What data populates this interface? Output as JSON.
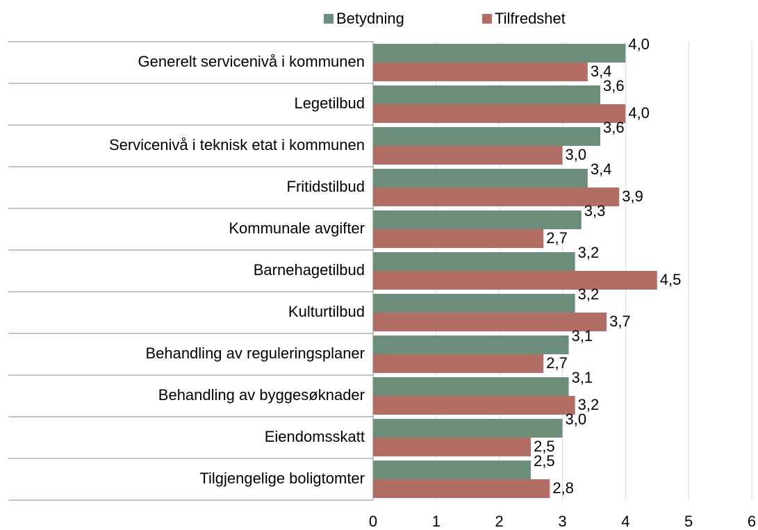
{
  "chart_data": {
    "type": "bar",
    "orientation": "horizontal",
    "categories": [
      "Generelt servicenivå i kommunen",
      "Legetilbud",
      "Servicenivå i teknisk etat i kommunen",
      "Fritidstilbud",
      "Kommunale avgifter",
      "Barnehagetilbud",
      "Kulturtilbud",
      "Behandling av reguleringsplaner",
      "Behandling av byggesøknader",
      "Eiendomsskatt",
      "Tilgjengelige boligtomter"
    ],
    "series": [
      {
        "name": "Betydning",
        "color": "#6e8e7c",
        "values": [
          4.0,
          3.6,
          3.6,
          3.4,
          3.3,
          3.2,
          3.2,
          3.1,
          3.1,
          3.0,
          2.5
        ],
        "value_labels": [
          "4,0",
          "3,6",
          "3,6",
          "3,4",
          "3,3",
          "3,2",
          "3,2",
          "3,1",
          "3,1",
          "3,0",
          "2,5"
        ]
      },
      {
        "name": "Tilfredshet",
        "color": "#b26e65",
        "values": [
          3.4,
          4.0,
          3.0,
          3.9,
          2.7,
          4.5,
          3.7,
          2.7,
          3.2,
          2.5,
          2.8
        ],
        "value_labels": [
          "3,4",
          "4,0",
          "3,0",
          "3,9",
          "2,7",
          "4,5",
          "3,7",
          "2,7",
          "3,2",
          "2,5",
          "2,8"
        ]
      }
    ],
    "xlim": [
      0,
      6
    ],
    "xticks": [
      0,
      1,
      2,
      3,
      4,
      5,
      6
    ],
    "grid": true,
    "legend": "top"
  }
}
